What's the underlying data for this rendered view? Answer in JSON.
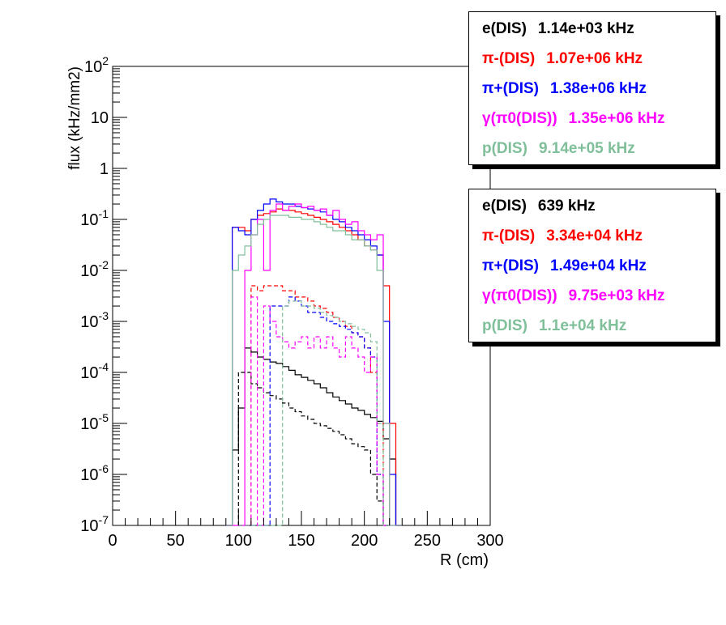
{
  "chart_data": {
    "type": "line",
    "xlabel": "R (cm)",
    "ylabel": "flux (kHz/mm2)",
    "x_ticks": [
      "0",
      "50",
      "100",
      "150",
      "200",
      "250",
      "300"
    ],
    "xlim": [
      0,
      300
    ],
    "ylim": [
      1e-07,
      100
    ],
    "yscale": "log",
    "y_ticks": [
      {
        "base": "10",
        "exp": "-7"
      },
      {
        "base": "10",
        "exp": "-6"
      },
      {
        "base": "10",
        "exp": "-5"
      },
      {
        "base": "10",
        "exp": "-4"
      },
      {
        "base": "10",
        "exp": "-3"
      },
      {
        "base": "10",
        "exp": "-2"
      },
      {
        "base": "10",
        "exp": "-1"
      },
      {
        "base": "1",
        "exp": ""
      },
      {
        "base": "10",
        "exp": ""
      },
      {
        "base": "10",
        "exp": "2"
      }
    ],
    "bin_width": 5,
    "legends": [
      {
        "placement": "top-right",
        "entries": [
          {
            "label": "e(DIS)",
            "value": "1.14e+03 kHz",
            "color": "#000000"
          },
          {
            "label": "π-(DIS)",
            "value": "1.07e+06 kHz",
            "color": "#ff0000"
          },
          {
            "label": "π+(DIS)",
            "value": "1.38e+06 kHz",
            "color": "#0000ff"
          },
          {
            "label": "γ(π0(DIS))",
            "value": "1.35e+06 kHz",
            "color": "#ff00ff"
          },
          {
            "label": "p(DIS)",
            "value": "9.14e+05 kHz",
            "color": "#7fbf9a"
          }
        ]
      },
      {
        "placement": "right",
        "entries": [
          {
            "label": "e(DIS)",
            "value": "639 kHz",
            "color": "#000000"
          },
          {
            "label": "π-(DIS)",
            "value": "3.34e+04 kHz",
            "color": "#ff0000"
          },
          {
            "label": "π+(DIS)",
            "value": "1.49e+04 kHz",
            "color": "#0000ff"
          },
          {
            "label": "γ(π0(DIS))",
            "value": "9.75e+03 kHz",
            "color": "#ff00ff"
          },
          {
            "label": "p(DIS)",
            "value": "1.1e+04 kHz",
            "color": "#7fbf9a"
          }
        ]
      }
    ],
    "series": [
      {
        "name": "e(DIS)",
        "color": "#000000",
        "style": "solid",
        "x_start": 90,
        "values": [
          1e-07,
          3e-06,
          2e-05,
          0.0003,
          0.00025,
          0.0002,
          0.00018,
          0.00016,
          0.00015,
          0.00013,
          0.00011,
          9e-05,
          8e-05,
          7e-05,
          6e-05,
          5e-05,
          4e-05,
          3.3e-05,
          2.8e-05,
          2.4e-05,
          2e-05,
          1.8e-05,
          1.5e-05,
          1.3e-05,
          1.1e-05,
          5e-06,
          2e-06,
          1e-07
        ]
      },
      {
        "name": "π-(DIS)",
        "color": "#ff0000",
        "style": "solid",
        "x_start": 90,
        "values": [
          1e-07,
          0.07,
          0.07,
          0.06,
          0.1,
          0.12,
          0.13,
          0.14,
          0.16,
          0.15,
          0.15,
          0.14,
          0.13,
          0.12,
          0.11,
          0.1,
          0.09,
          0.08,
          0.07,
          0.06,
          0.05,
          0.04,
          0.03,
          0.025,
          0.02,
          0.005,
          1e-05,
          1e-07
        ]
      },
      {
        "name": "π+(DIS)",
        "color": "#0000ff",
        "style": "solid",
        "x_start": 90,
        "values": [
          1e-07,
          0.07,
          0.06,
          0.05,
          0.1,
          0.15,
          0.2,
          0.25,
          0.22,
          0.2,
          0.2,
          0.18,
          0.17,
          0.16,
          0.15,
          0.14,
          0.12,
          0.1,
          0.09,
          0.07,
          0.06,
          0.05,
          0.04,
          0.03,
          0.02,
          0.001,
          1e-06,
          1e-07
        ]
      },
      {
        "name": "γ(π0(DIS))",
        "color": "#ff00ff",
        "style": "solid",
        "x_start": 90,
        "values": [
          1e-07,
          1e-07,
          1e-07,
          0.01,
          0.05,
          0.1,
          0.01,
          0.15,
          0.2,
          0.15,
          0.18,
          0.2,
          0.17,
          0.18,
          0.15,
          0.16,
          0.12,
          0.15,
          0.1,
          0.08,
          0.09,
          0.06,
          0.05,
          0.04,
          0.05,
          1e-05,
          1e-07,
          1e-07
        ]
      },
      {
        "name": "p(DIS)",
        "color": "#7fbf9a",
        "style": "solid",
        "x_start": 90,
        "values": [
          1e-07,
          0.01,
          0.02,
          0.03,
          0.05,
          0.08,
          0.1,
          0.12,
          0.12,
          0.12,
          0.11,
          0.11,
          0.1,
          0.1,
          0.09,
          0.08,
          0.07,
          0.06,
          0.06,
          0.05,
          0.04,
          0.04,
          0.03,
          0.025,
          0.01,
          1e-05,
          1e-07,
          1e-07
        ]
      },
      {
        "name": "e(DIS) (dashed)",
        "color": "#000000",
        "style": "dashed",
        "x_start": 100,
        "values": [
          0.0001,
          0.0001,
          6e-05,
          5e-05,
          4e-05,
          3.5e-05,
          3e-05,
          2.5e-05,
          2e-05,
          1.7e-05,
          1.4e-05,
          1.2e-05,
          1e-05,
          9e-06,
          8e-06,
          7e-06,
          6e-06,
          5e-06,
          4e-06,
          3.5e-06,
          3e-06,
          1e-06,
          3e-07,
          1e-07
        ]
      },
      {
        "name": "π-(DIS) (dashed)",
        "color": "#ff0000",
        "style": "dashed",
        "x_start": 100,
        "values": [
          1e-07,
          1e-07,
          0.005,
          0.004,
          0.005,
          0.005,
          0.005,
          0.004,
          0.004,
          0.003,
          0.003,
          0.0025,
          0.002,
          0.0018,
          0.0015,
          0.0012,
          0.001,
          0.0008,
          0.0006,
          0.0005,
          0.0003,
          0.0001,
          1e-05,
          1e-07
        ]
      },
      {
        "name": "π+(DIS) (dashed)",
        "color": "#0000ff",
        "style": "dashed",
        "x_start": 100,
        "values": [
          1e-07,
          1e-07,
          1e-07,
          1e-07,
          1e-07,
          0.002,
          0.002,
          0.002,
          0.003,
          0.0025,
          0.002,
          0.0015,
          0.0015,
          0.0012,
          0.001,
          0.0009,
          0.0008,
          0.0007,
          0.0006,
          0.0005,
          0.0003,
          0.0002,
          1e-06,
          1e-07
        ]
      },
      {
        "name": "γ(π0(DIS)) (dashed)",
        "color": "#ff00ff",
        "style": "dashed",
        "x_start": 100,
        "values": [
          1e-07,
          1e-07,
          0.003,
          1e-07,
          0.002,
          0.001,
          0.0005,
          0.0004,
          0.0003,
          0.0004,
          0.0005,
          0.0003,
          0.0005,
          0.0003,
          0.0005,
          0.0003,
          0.0002,
          0.0005,
          0.0003,
          0.0002,
          0.0001,
          0.0002,
          1e-06,
          1e-07
        ]
      },
      {
        "name": "p(DIS) (dashed)",
        "color": "#7fbf9a",
        "style": "dashed",
        "x_start": 100,
        "values": [
          1e-07,
          1e-07,
          1e-07,
          1e-07,
          1e-07,
          1e-07,
          1e-07,
          0.002,
          0.0025,
          0.0025,
          0.002,
          0.002,
          0.0018,
          0.0015,
          0.0013,
          0.0012,
          0.001,
          0.0009,
          0.0008,
          0.0007,
          0.0006,
          0.0004,
          1e-05,
          1e-07
        ]
      }
    ]
  }
}
